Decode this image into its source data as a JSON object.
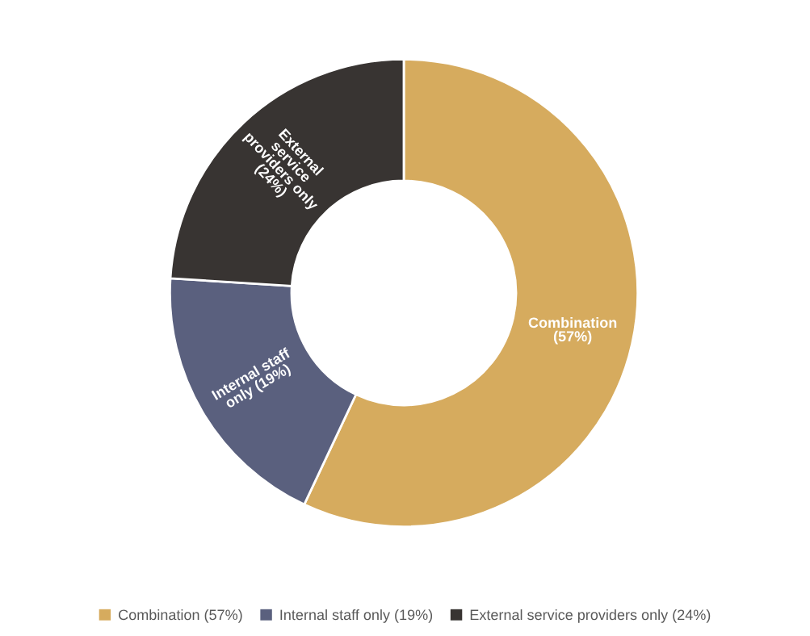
{
  "chart_data": {
    "type": "donut",
    "categories": [
      "Combination (57%)",
      "Internal staff only (19%)",
      "External service providers only (24%)"
    ],
    "values": [
      57,
      19,
      24
    ],
    "colors": [
      "#d6ab5e",
      "#5a607e",
      "#383432"
    ],
    "value_labels": [
      "Combination\n(57%)",
      "Internal staff\nonly (19%)",
      "External\nservice\nproviders only\n(24%)"
    ],
    "legend": "bottom"
  }
}
